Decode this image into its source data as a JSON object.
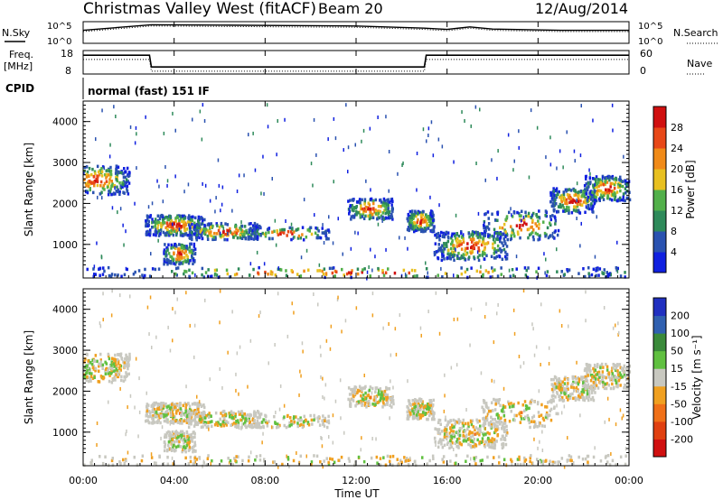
{
  "header": {
    "title": "Christmas Valley West (fitACF)",
    "beam": "Beam 20",
    "date": "12/Aug/2014"
  },
  "panel_labels": {
    "nsky": "N.Sky",
    "nsearch": "N.Search",
    "freq": "Freq.",
    "freq_unit": "[MHz]",
    "nave": "Nave",
    "cpid": "CPID",
    "cpid_value": "normal (fast) 151 IF"
  },
  "axes": {
    "noise_ticks_left": [
      "10^5",
      "10^0"
    ],
    "noise_ticks_right": [
      "10^5",
      "10^0"
    ],
    "freq_ticks": [
      "18",
      "8"
    ],
    "nave_ticks": [
      "60",
      "0"
    ],
    "range_ticks": [
      "1000",
      "2000",
      "3000",
      "4000"
    ],
    "range_label": "Slant Range [km]",
    "time_ticks": [
      "00:00",
      "04:00",
      "08:00",
      "12:00",
      "16:00",
      "20:00",
      "00:00"
    ],
    "time_label": "Time UT"
  },
  "power_scale": {
    "label": "Power [dB]",
    "ticks": [
      "4",
      "8",
      "12",
      "16",
      "20",
      "24",
      "28"
    ],
    "colors": [
      "#1020e0",
      "#2a52b0",
      "#2e8a5a",
      "#52b04a",
      "#e8c020",
      "#f08a18",
      "#e84818",
      "#d01010"
    ]
  },
  "velocity_scale": {
    "label": "Velocity [m s⁻¹]",
    "ticks": [
      "200",
      "100",
      "50",
      "15",
      "-15",
      "-50",
      "-100",
      "-200"
    ],
    "colors": [
      "#2030c0",
      "#3060b0",
      "#3a8a3a",
      "#60c040",
      "#c8c8c0",
      "#f0a020",
      "#f07018",
      "#e04010",
      "#d01010"
    ]
  },
  "chart_data": [
    {
      "type": "line",
      "title": "Christmas Valley West (fitACF)",
      "xlabel": "",
      "ylabel": "N.Sky",
      "x": [
        "00:00",
        "03:00",
        "06:00",
        "09:00",
        "12:00",
        "15:00",
        "16:00",
        "17:00",
        "18:00",
        "21:00",
        "24:00"
      ],
      "series": [
        {
          "name": "N.Sky",
          "values": [
            3.0,
            4.3,
            4.2,
            4.1,
            4.0,
            3.5,
            3.2,
            3.8,
            3.3,
            3.0,
            3.0
          ]
        }
      ]
    },
    {
      "type": "line",
      "xlabel": "",
      "ylabel": "Freq. [MHz]",
      "ylim": [
        8,
        18
      ],
      "x": [
        "00:00",
        "02:55",
        "03:00",
        "15:00",
        "15:05",
        "24:00"
      ],
      "series": [
        {
          "name": "Freq.",
          "values": [
            16.0,
            16.0,
            11.0,
            11.0,
            16.0,
            16.0
          ]
        }
      ]
    },
    {
      "type": "heatmap",
      "variable": "Power [dB]",
      "xlabel": "Time UT",
      "ylabel": "Slant Range [km]",
      "xlim": [
        "00:00",
        "24:00"
      ],
      "ylim": [
        180,
        4500
      ],
      "clim": [
        0,
        30
      ]
    },
    {
      "type": "heatmap",
      "variable": "Velocity [m s⁻¹]",
      "xlabel": "Time UT",
      "ylabel": "Slant Range [km]",
      "xlim": [
        "00:00",
        "24:00"
      ],
      "ylim": [
        180,
        4500
      ],
      "clim": [
        -200,
        200
      ]
    }
  ]
}
